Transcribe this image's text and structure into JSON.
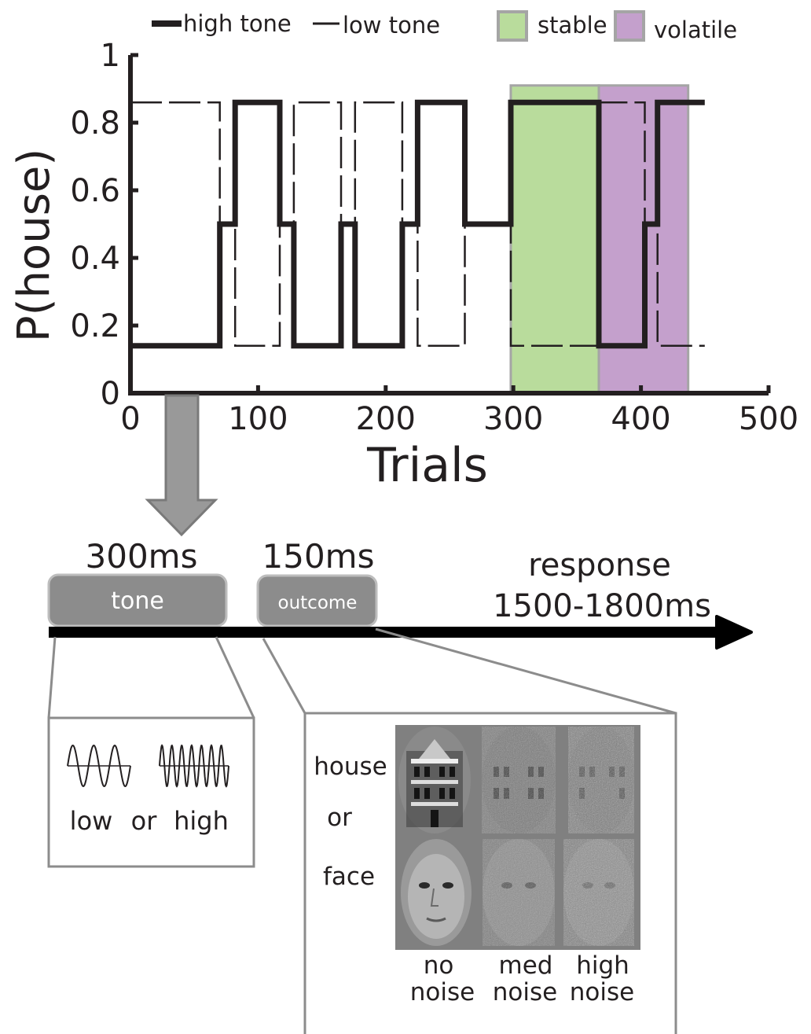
{
  "legend": {
    "high_tone": "high tone",
    "low_tone": "low tone",
    "stable": "stable",
    "volatile": "volatile"
  },
  "colors": {
    "stable_fill": "#b9dc9c",
    "volatile_fill": "#c4a0cc",
    "line": "#231f20",
    "box_gray": "#8c8c8c",
    "arrow_gray": "#999999"
  },
  "chart_data": {
    "type": "line",
    "ylabel": "P(house)",
    "xlabel": "Trials",
    "xlim": [
      0,
      500
    ],
    "ylim": [
      0,
      1
    ],
    "x_ticks": [
      "0",
      "100",
      "200",
      "300",
      "400",
      "500"
    ],
    "y_ticks": [
      "0",
      "0.2",
      "0.4",
      "0.6",
      "0.8",
      "1"
    ],
    "x_tick_values": [
      0,
      100,
      200,
      300,
      400,
      500
    ],
    "y_tick_values": [
      0,
      0.2,
      0.4,
      0.6,
      0.8,
      1
    ],
    "series": [
      {
        "name": "high tone",
        "style": "solid-thick",
        "x": [
          0,
          70,
          70,
          82,
          82,
          117,
          117,
          128,
          128,
          165,
          165,
          176,
          176,
          213,
          213,
          225,
          225,
          262,
          262,
          298,
          298,
          367,
          367,
          403,
          403,
          413,
          413,
          419,
          419,
          450
        ],
        "y": [
          0.14,
          0.14,
          0.5,
          0.5,
          0.86,
          0.86,
          0.5,
          0.5,
          0.14,
          0.14,
          0.5,
          0.5,
          0.14,
          0.14,
          0.5,
          0.5,
          0.86,
          0.86,
          0.5,
          0.5,
          0.86,
          0.86,
          0.14,
          0.14,
          0.5,
          0.5,
          0.86,
          0.86,
          0.86,
          0.86
        ]
      },
      {
        "name": "low tone",
        "style": "dashed-thin",
        "x": [
          0,
          70,
          70,
          82,
          82,
          117,
          117,
          128,
          128,
          165,
          165,
          176,
          176,
          213,
          213,
          225,
          225,
          262,
          262,
          298,
          298,
          367,
          367,
          403,
          403,
          413,
          413,
          450
        ],
        "y": [
          0.86,
          0.86,
          0.5,
          0.5,
          0.14,
          0.14,
          0.5,
          0.5,
          0.86,
          0.86,
          0.5,
          0.5,
          0.86,
          0.86,
          0.5,
          0.5,
          0.14,
          0.14,
          0.5,
          0.5,
          0.14,
          0.14,
          0.86,
          0.86,
          0.5,
          0.5,
          0.14,
          0.14
        ]
      }
    ],
    "shaded_regions": [
      {
        "name": "stable",
        "x": [
          298,
          367
        ]
      },
      {
        "name": "volatile",
        "x": [
          367,
          437
        ]
      }
    ]
  },
  "timeline": {
    "tone_duration": "300ms",
    "tone_label": "tone",
    "outcome_duration": "150ms",
    "outcome_label": "outcome",
    "response_label": "response",
    "response_duration": "1500-1800ms"
  },
  "tone_panel": {
    "low": "low",
    "or": "or",
    "high": "high"
  },
  "outcome_panel": {
    "house": "house",
    "or": "or",
    "face": "face",
    "col1_line1": "no",
    "col1_line2": "noise",
    "col2_line1": "med",
    "col2_line2": "noise",
    "col3_line1": "high",
    "col3_line2": "noise"
  }
}
